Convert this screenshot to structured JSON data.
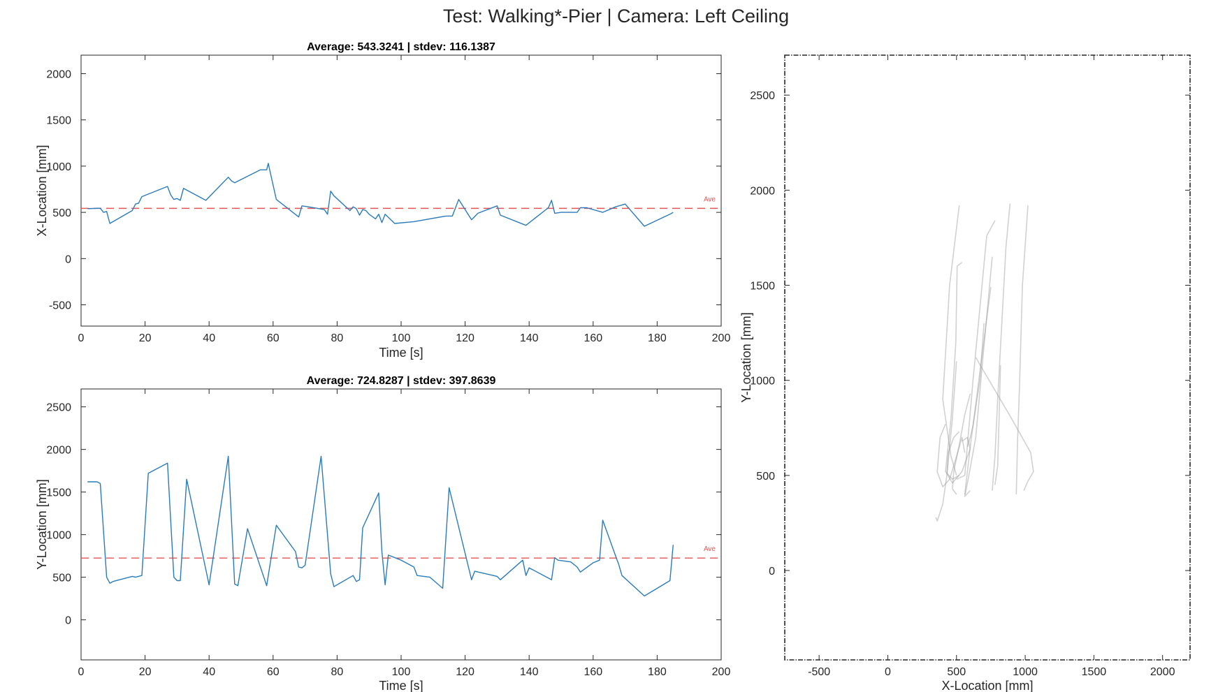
{
  "figure": {
    "title": "Test: Walking*-Pier  |  Camera: Left Ceiling"
  },
  "colors": {
    "series": "#2b7bb9",
    "average": "#e05555",
    "trajectory": "#999999",
    "axes": "#262626"
  },
  "chart_data": [
    {
      "type": "line",
      "title": "Average: 543.3241  |  stdev: 116.1387",
      "xlabel": "Time [s]",
      "ylabel": "X-Location [mm]",
      "xlim": [
        0,
        200
      ],
      "ylim": [
        -730,
        2200
      ],
      "xticks": [
        "0",
        "20",
        "40",
        "60",
        "80",
        "100",
        "120",
        "140",
        "160",
        "180",
        "200"
      ],
      "yticks": [
        "-500",
        "0",
        "500",
        "1000",
        "1500",
        "2000"
      ],
      "average": 543.3241,
      "average_label": "Ave",
      "series": [
        {
          "x": [
            2,
            6,
            7,
            8,
            9,
            16,
            17,
            18,
            19,
            27,
            28,
            29,
            30,
            31,
            32,
            39,
            46,
            47,
            48,
            56,
            58,
            58.5,
            59,
            61,
            68,
            69,
            71,
            76,
            77,
            78,
            79,
            84,
            85,
            86,
            87,
            88,
            89,
            90,
            92,
            93,
            94,
            95,
            98,
            104,
            114,
            116,
            118,
            122,
            124,
            130,
            131,
            139,
            146,
            147,
            148,
            150,
            155,
            156,
            157,
            158,
            163,
            167,
            170,
            176,
            184,
            185
          ],
          "y": [
            540,
            545,
            500,
            510,
            380,
            520,
            590,
            600,
            670,
            780,
            690,
            640,
            650,
            630,
            760,
            630,
            880,
            840,
            820,
            960,
            960,
            1030,
            950,
            640,
            450,
            570,
            560,
            530,
            480,
            730,
            680,
            520,
            560,
            540,
            470,
            530,
            520,
            480,
            430,
            480,
            390,
            480,
            380,
            400,
            460,
            460,
            640,
            420,
            490,
            570,
            470,
            360,
            550,
            630,
            490,
            500,
            500,
            550,
            550,
            550,
            500,
            560,
            590,
            350,
            480,
            500
          ]
        }
      ]
    },
    {
      "type": "line",
      "title": "Average: 724.8287  |  stdev: 397.8639",
      "xlabel": "Time [s]",
      "ylabel": "Y-Location [mm]",
      "xlim": [
        0,
        200
      ],
      "ylim": [
        -470,
        2710
      ],
      "xticks": [
        "0",
        "20",
        "40",
        "60",
        "80",
        "100",
        "120",
        "140",
        "160",
        "180",
        "200"
      ],
      "yticks": [
        "0",
        "500",
        "1000",
        "1500",
        "2000",
        "2500"
      ],
      "average": 724.8287,
      "average_label": "Ave",
      "series": [
        {
          "x": [
            2,
            5,
            6,
            8,
            9,
            10,
            16,
            17,
            19,
            21,
            27,
            29,
            30,
            31,
            33,
            40,
            46,
            48,
            49,
            52,
            58,
            61,
            67,
            68,
            69,
            70,
            75,
            78,
            79,
            85,
            86,
            87,
            88,
            93,
            94,
            95,
            96,
            100,
            104,
            105,
            109,
            113,
            115,
            122,
            123,
            130,
            131,
            138,
            139,
            140,
            147,
            148,
            149,
            153,
            155,
            156,
            160,
            162,
            163,
            167,
            168,
            169,
            176,
            184,
            185
          ],
          "y": [
            1620,
            1620,
            1600,
            500,
            430,
            450,
            510,
            500,
            520,
            1720,
            1840,
            500,
            460,
            460,
            1650,
            410,
            1920,
            420,
            400,
            1070,
            400,
            1110,
            800,
            620,
            610,
            640,
            1920,
            540,
            390,
            520,
            450,
            470,
            1080,
            1490,
            800,
            410,
            760,
            700,
            620,
            520,
            500,
            370,
            1550,
            470,
            570,
            510,
            470,
            700,
            520,
            610,
            470,
            730,
            700,
            680,
            620,
            560,
            670,
            700,
            1170,
            750,
            650,
            520,
            280,
            460,
            880
          ]
        }
      ]
    },
    {
      "type": "line",
      "title": "",
      "xlabel": "X-Location [mm]",
      "ylabel": "Y-Location [mm]",
      "xlim": [
        -750,
        2200
      ],
      "ylim": [
        -470,
        2710
      ],
      "xticks": [
        "-500",
        "0",
        "500",
        "1000",
        "1500",
        "2000"
      ],
      "yticks": [
        "0",
        "500",
        "1000",
        "1500",
        "2000",
        "2500"
      ],
      "series": [
        {
          "x": [
            520,
            450,
            400,
            460,
            500
          ],
          "y": [
            1920,
            1500,
            900,
            600,
            500
          ]
        },
        {
          "x": [
            540,
            505,
            495,
            460,
            420,
            470,
            520
          ],
          "y": [
            1620,
            1600,
            1200,
            800,
            520,
            480,
            500
          ]
        },
        {
          "x": [
            780,
            720,
            620,
            560,
            500
          ],
          "y": [
            1840,
            1760,
            1000,
            500,
            480
          ]
        },
        {
          "x": [
            890,
            860,
            800,
            780,
            760
          ],
          "y": [
            1930,
            1700,
            900,
            600,
            420
          ]
        },
        {
          "x": [
            760,
            690,
            640,
            590,
            560,
            600
          ],
          "y": [
            1650,
            1100,
            700,
            500,
            390,
            420
          ]
        },
        {
          "x": [
            500,
            470,
            430,
            400,
            360,
            350
          ],
          "y": [
            1100,
            800,
            500,
            350,
            260,
            280
          ]
        },
        {
          "x": [
            750,
            680,
            600,
            560
          ],
          "y": [
            1490,
            1100,
            650,
            400
          ]
        },
        {
          "x": [
            820,
            810,
            800,
            780
          ],
          "y": [
            1080,
            800,
            550,
            450
          ]
        },
        {
          "x": [
            640,
            900,
            1040,
            1060,
            1020,
            990
          ],
          "y": [
            1120,
            800,
            620,
            520,
            470,
            420
          ]
        },
        {
          "x": [
            420,
            380,
            360,
            400,
            450,
            500,
            540,
            560
          ],
          "y": [
            770,
            700,
            520,
            440,
            480,
            600,
            700,
            620
          ]
        },
        {
          "x": [
            520,
            480,
            440,
            430,
            470,
            540,
            600,
            580,
            540
          ],
          "y": [
            730,
            700,
            620,
            510,
            460,
            520,
            640,
            700,
            680
          ]
        },
        {
          "x": [
            600,
            560,
            520,
            480,
            470,
            500
          ],
          "y": [
            930,
            820,
            660,
            520,
            430,
            400
          ]
        },
        {
          "x": [
            1020,
            980,
            960,
            945,
            935
          ],
          "y": [
            1920,
            1500,
            1000,
            700,
            400
          ]
        },
        {
          "x": [
            700,
            670,
            620,
            600,
            580
          ],
          "y": [
            1300,
            1000,
            760,
            700,
            650
          ]
        }
      ]
    }
  ]
}
